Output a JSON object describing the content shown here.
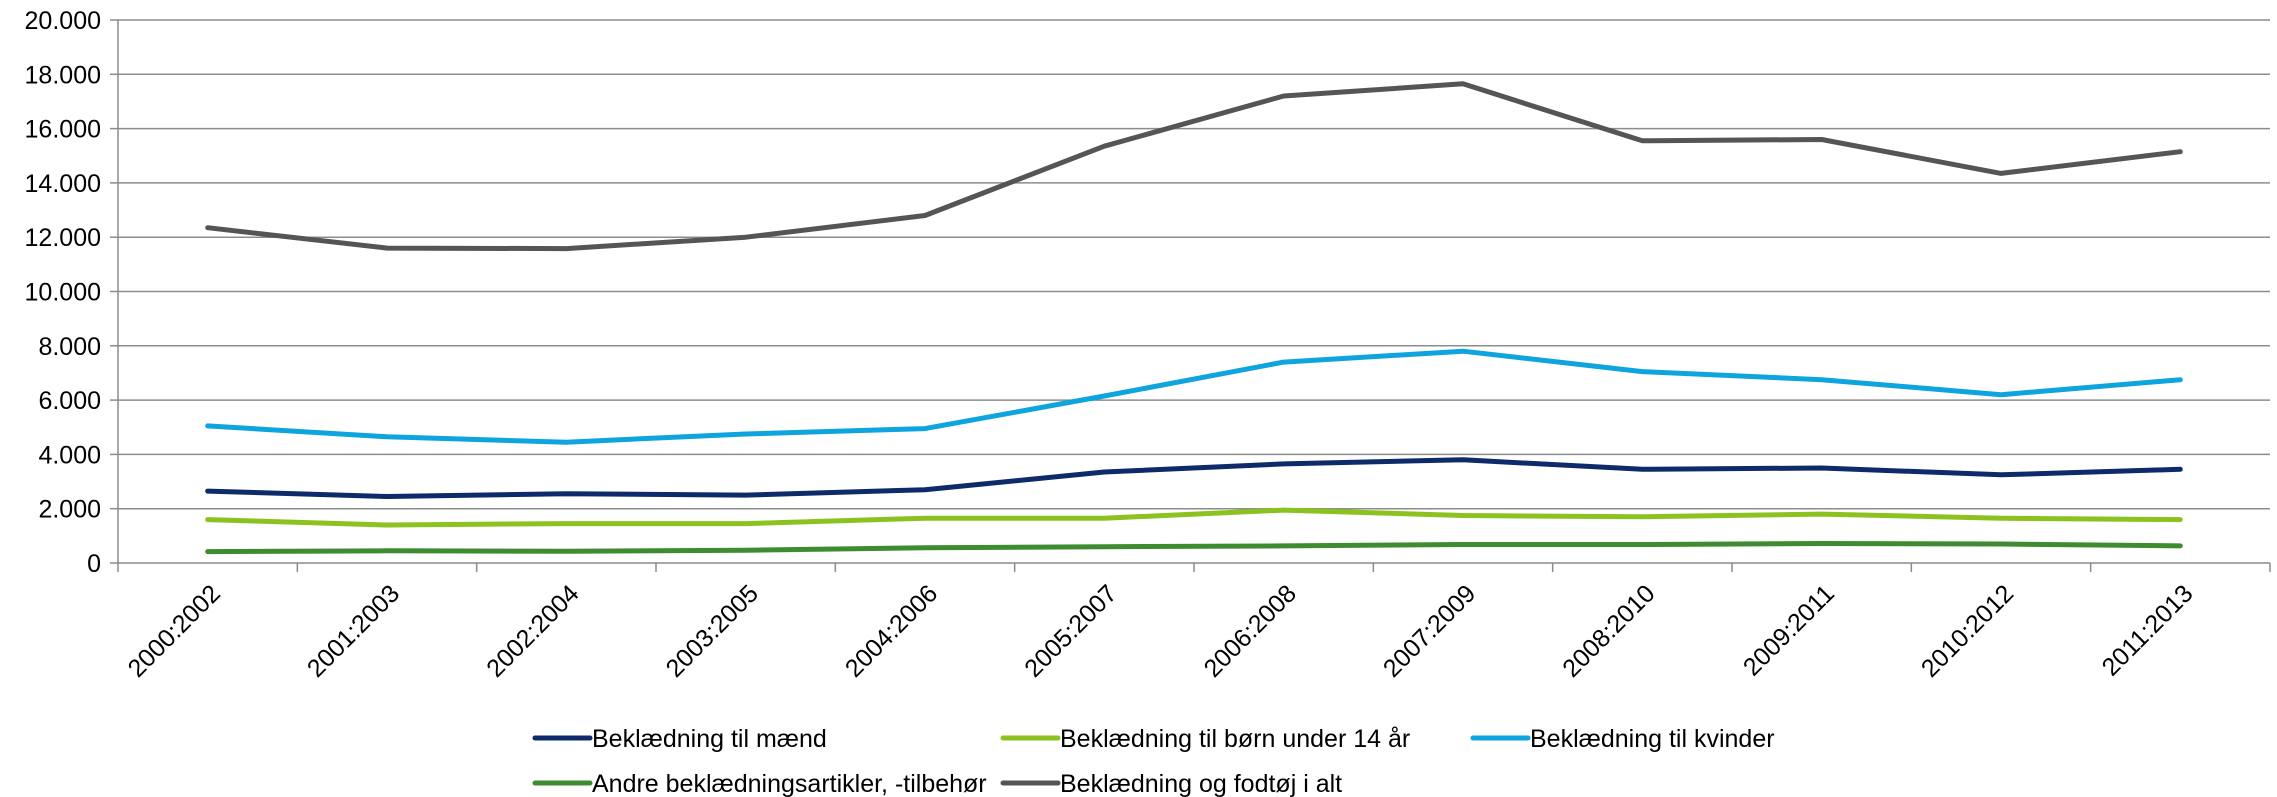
{
  "chart_data": {
    "type": "line",
    "title": "",
    "xlabel": "",
    "ylabel": "",
    "categories": [
      "2000:2002",
      "2001:2003",
      "2002:2004",
      "2003:2005",
      "2004:2006",
      "2005:2007",
      "2006:2008",
      "2007:2009",
      "2008:2010",
      "2009:2011",
      "2010:2012",
      "2011:2013"
    ],
    "ylim": [
      0,
      20000
    ],
    "yticks": [
      0,
      2000,
      4000,
      6000,
      8000,
      10000,
      12000,
      14000,
      16000,
      18000,
      20000
    ],
    "ytick_labels": [
      "0",
      "2.000",
      "4.000",
      "6.000",
      "8.000",
      "10.000",
      "12.000",
      "14.000",
      "16.000",
      "18.000",
      "20.000"
    ],
    "grid": true,
    "legend_position": "bottom",
    "series": [
      {
        "name": "Beklædning til mænd",
        "color": "#0d2a6b",
        "values": [
          2650,
          2450,
          2550,
          2500,
          2700,
          3350,
          3650,
          3800,
          3450,
          3500,
          3250,
          3450
        ]
      },
      {
        "name": "Beklædning til børn under 14 år",
        "color": "#8cc21f",
        "values": [
          1600,
          1400,
          1450,
          1450,
          1650,
          1650,
          1950,
          1750,
          1700,
          1800,
          1650,
          1600
        ]
      },
      {
        "name": "Beklædning til kvinder",
        "color": "#0ea4de",
        "values": [
          5050,
          4650,
          4450,
          4750,
          4950,
          6150,
          7400,
          7800,
          7050,
          6750,
          6200,
          6750
        ]
      },
      {
        "name": "Andre beklædningsartikler, -tilbehør",
        "color": "#3d8c2f",
        "values": [
          420,
          450,
          430,
          470,
          560,
          600,
          630,
          680,
          680,
          720,
          700,
          630
        ]
      },
      {
        "name": "Beklædning og fodtøj i alt",
        "color": "#555555",
        "values": [
          12350,
          11600,
          11580,
          12000,
          12800,
          15350,
          17200,
          17650,
          15550,
          15600,
          14350,
          15150
        ]
      }
    ]
  }
}
